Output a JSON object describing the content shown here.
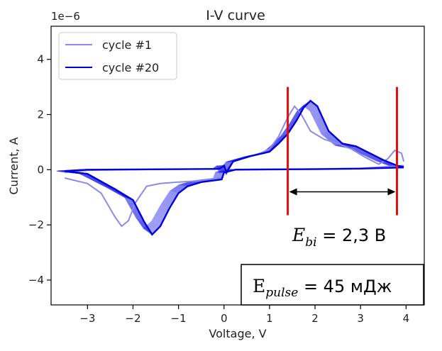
{
  "chart_data": {
    "type": "line",
    "title": "I-V curve",
    "xlabel": "Voltage, V",
    "ylabel": "Current, A",
    "y_offset_text": "1e−6",
    "xlim": [
      -3.8,
      4.4
    ],
    "ylim": [
      -4.9,
      5.2
    ],
    "x_ticks": [
      -3,
      -2,
      -1,
      0,
      1,
      2,
      3,
      4
    ],
    "x_tick_labels": [
      "−3",
      "−2",
      "−1",
      "0",
      "1",
      "2",
      "3",
      "4"
    ],
    "y_ticks": [
      -4,
      -2,
      0,
      2,
      4
    ],
    "y_tick_labels": [
      "−4",
      "−2",
      "0",
      "2",
      "4"
    ],
    "grid": false,
    "legend_position": "top-left",
    "colors": {
      "cycle1": "#8a8aef",
      "cycle20": "#0000dd",
      "intermediate": "#2a2ae6",
      "marker": "#e01010"
    },
    "series": [
      {
        "name": "cycle #1",
        "upper": [
          [
            -3.5,
            -0.1
          ],
          [
            -3,
            -0.02
          ],
          [
            -2,
            0
          ],
          [
            -1,
            0.02
          ],
          [
            -0.1,
            0.03
          ],
          [
            0,
            0.15
          ],
          [
            0.05,
            -0.15
          ],
          [
            0.2,
            0.3
          ],
          [
            0.5,
            0.45
          ],
          [
            0.8,
            0.6
          ],
          [
            1,
            0.75
          ],
          [
            1.2,
            1.2
          ],
          [
            1.4,
            1.9
          ],
          [
            1.55,
            2.3
          ],
          [
            1.7,
            2.0
          ],
          [
            1.9,
            1.4
          ],
          [
            2.2,
            1.1
          ],
          [
            2.5,
            0.95
          ],
          [
            2.8,
            0.75
          ],
          [
            3.1,
            0.45
          ],
          [
            3.4,
            0.2
          ],
          [
            3.6,
            0.4
          ],
          [
            3.75,
            0.7
          ],
          [
            3.9,
            0.6
          ],
          [
            3.95,
            0.3
          ]
        ],
        "lower": [
          [
            3.95,
            0.15
          ],
          [
            3,
            0.05
          ],
          [
            2,
            0.03
          ],
          [
            1,
            0.02
          ],
          [
            0.25,
            0.01
          ],
          [
            0,
            -0.1
          ],
          [
            -0.05,
            -0.3
          ],
          [
            -0.5,
            -0.4
          ],
          [
            -1,
            -0.45
          ],
          [
            -1.4,
            -0.5
          ],
          [
            -1.7,
            -0.6
          ],
          [
            -1.95,
            -1.2
          ],
          [
            -2.1,
            -1.85
          ],
          [
            -2.25,
            -2.05
          ],
          [
            -2.4,
            -1.7
          ],
          [
            -2.7,
            -0.85
          ],
          [
            -3,
            -0.5
          ],
          [
            -3.5,
            -0.3
          ]
        ]
      },
      {
        "name": "cycle #20",
        "upper": [
          [
            -3.5,
            -0.05
          ],
          [
            -3,
            0
          ],
          [
            -2,
            0.01
          ],
          [
            -1,
            0.02
          ],
          [
            -0.1,
            0.03
          ],
          [
            0,
            0.15
          ],
          [
            0.05,
            -0.1
          ],
          [
            0.2,
            0.3
          ],
          [
            0.6,
            0.5
          ],
          [
            1,
            0.65
          ],
          [
            1.2,
            0.95
          ],
          [
            1.4,
            1.3
          ],
          [
            1.6,
            1.8
          ],
          [
            1.75,
            2.25
          ],
          [
            1.9,
            2.5
          ],
          [
            2.05,
            2.3
          ],
          [
            2.3,
            1.4
          ],
          [
            2.6,
            0.95
          ],
          [
            2.9,
            0.85
          ],
          [
            3.2,
            0.6
          ],
          [
            3.5,
            0.35
          ],
          [
            3.8,
            0.15
          ],
          [
            3.95,
            0.1
          ]
        ],
        "lower": [
          [
            3.95,
            0.08
          ],
          [
            3,
            0.04
          ],
          [
            2,
            0.02
          ],
          [
            1,
            0.01
          ],
          [
            0.25,
            0
          ],
          [
            0,
            -0.1
          ],
          [
            -0.05,
            -0.35
          ],
          [
            -0.5,
            -0.45
          ],
          [
            -0.8,
            -0.6
          ],
          [
            -1,
            -0.85
          ],
          [
            -1.2,
            -1.4
          ],
          [
            -1.4,
            -2.05
          ],
          [
            -1.58,
            -2.35
          ],
          [
            -1.75,
            -1.9
          ],
          [
            -2,
            -1.1
          ],
          [
            -2.4,
            -0.7
          ],
          [
            -3,
            -0.15
          ],
          [
            -3.5,
            -0.05
          ]
        ]
      }
    ],
    "annotations": {
      "ebi_symbol": "E",
      "ebi_subscript": "bi",
      "ebi_value": " = 2,3 В",
      "pulse_symbol": "E",
      "pulse_subscript": "pulse",
      "pulse_value": " = 45 мДж",
      "marker_x": [
        1.4,
        3.8
      ],
      "marker_y_range": [
        -1.65,
        3.0
      ],
      "arrow_y": -0.8
    }
  }
}
